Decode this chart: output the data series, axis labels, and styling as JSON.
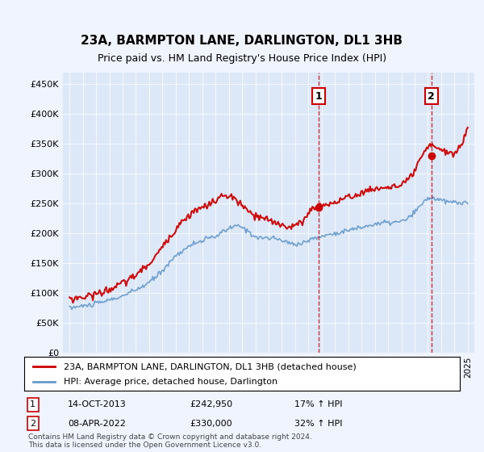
{
  "title": "23A, BARMPTON LANE, DARLINGTON, DL1 3HB",
  "subtitle": "Price paid vs. HM Land Registry's House Price Index (HPI)",
  "xlabel": "",
  "ylabel": "",
  "ylim": [
    0,
    470000
  ],
  "yticks": [
    0,
    50000,
    100000,
    150000,
    200000,
    250000,
    300000,
    350000,
    400000,
    450000
  ],
  "ytick_labels": [
    "£0",
    "£50K",
    "£100K",
    "£150K",
    "£200K",
    "£250K",
    "£300K",
    "£350K",
    "£400K",
    "£450K"
  ],
  "background_color": "#f0f4ff",
  "plot_bg_color": "#dce8f8",
  "red_line_color": "#cc0000",
  "blue_line_color": "#6699cc",
  "vline_color": "#cc0000",
  "marker1_date_idx": 18.8,
  "marker2_date_idx": 27.3,
  "marker1_value": 242950,
  "marker2_value": 330000,
  "legend_label1": "23A, BARMPTON LANE, DARLINGTON, DL1 3HB (detached house)",
  "legend_label2": "HPI: Average price, detached house, Darlington",
  "annotation1_num": "1",
  "annotation2_num": "2",
  "note1_label": "1",
  "note1_date": "14-OCT-2013",
  "note1_price": "£242,950",
  "note1_hpi": "17% ↑ HPI",
  "note2_label": "2",
  "note2_date": "08-APR-2022",
  "note2_price": "£330,000",
  "note2_hpi": "32% ↑ HPI",
  "footer": "Contains HM Land Registry data © Crown copyright and database right 2024.\nThis data is licensed under the Open Government Licence v3.0."
}
